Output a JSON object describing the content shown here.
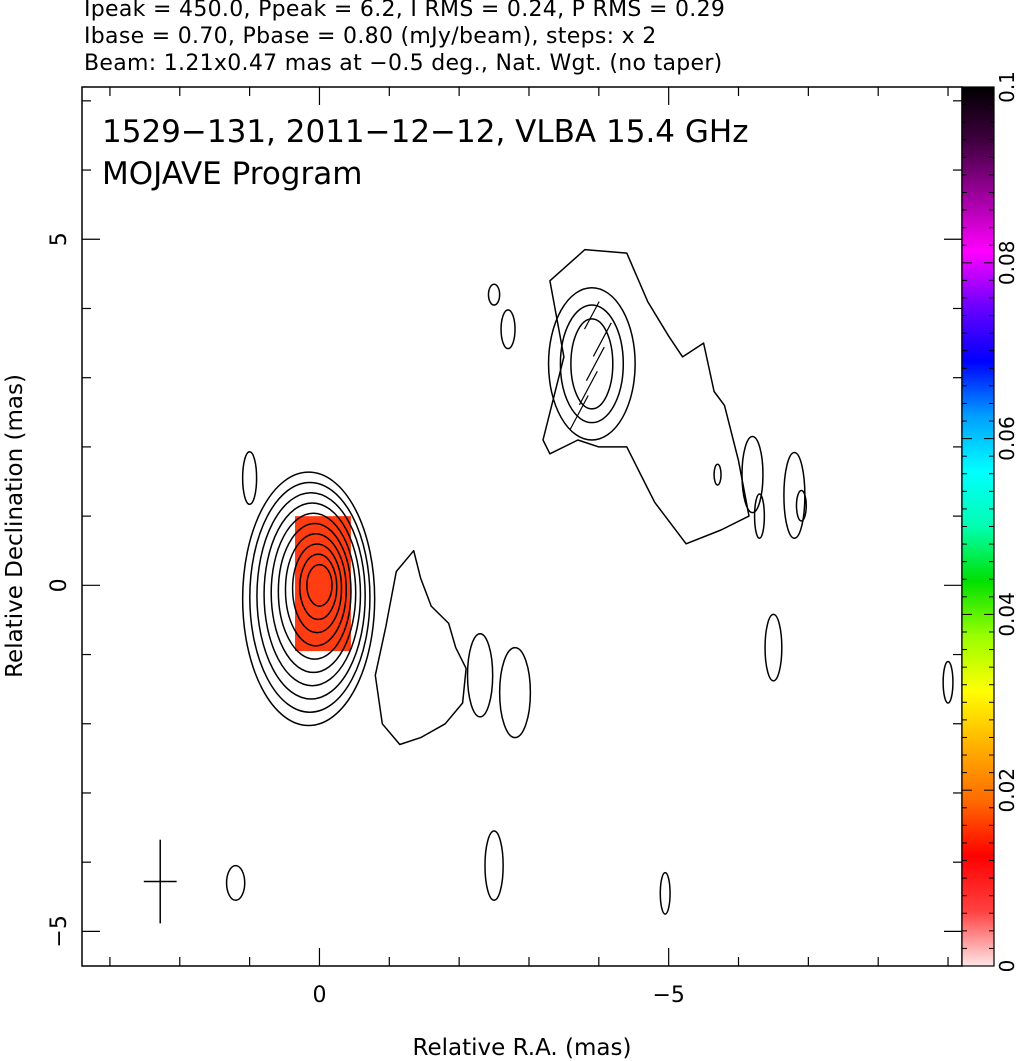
{
  "header": {
    "line1": "Ipeak = 450.0, Ppeak = 6.2, I RMS = 0.24, P RMS = 0.29",
    "line2": "Ibase = 0.70, Pbase = 0.80 (mJy/beam), steps: x 2",
    "line3": "Beam: 1.21x0.47 mas at −0.5 deg., Nat. Wgt. (no taper)"
  },
  "chart_data": {
    "type": "heatmap",
    "title_line1": "1529−131, 2011−12−12, VLBA 15.4 GHz",
    "title_line2": "MOJAVE Program",
    "xlabel": "Relative R.A. (mas)",
    "ylabel": "Relative Declination (mas)",
    "xlim": [
      3.4,
      -9.2
    ],
    "ylim": [
      -5.5,
      7.2
    ],
    "x_ticks": [
      0,
      -5
    ],
    "x_tick_labels": [
      "0",
      "−5"
    ],
    "y_ticks": [
      5,
      0,
      -5
    ],
    "y_tick_labels": [
      "5",
      "0",
      "−5"
    ],
    "colorbar": {
      "range": [
        0,
        0.1
      ],
      "ticks": [
        0,
        0.02,
        0.04,
        0.06,
        0.08,
        0.1
      ],
      "tick_labels": [
        "0",
        "0.02",
        "0.04",
        "0.06",
        "0.08",
        "0.1"
      ],
      "colors": [
        "#ffe6e6",
        "#ff4040",
        "#ff0000",
        "#ff6a00",
        "#ffb000",
        "#ffff00",
        "#9aff00",
        "#00e000",
        "#00ffb0",
        "#00ffff",
        "#00a0ff",
        "#0000ff",
        "#6a00ff",
        "#ff00ff",
        "#a000a0",
        "#400040",
        "#000000"
      ]
    },
    "core": {
      "x": 0,
      "y": 0,
      "contour_levels": 10,
      "rx0": 0.18,
      "ry0": 0.3,
      "rx_step": 0.085,
      "ry_step": 0.17
    },
    "polarization_patch": {
      "x_range": [
        0.35,
        -0.45
      ],
      "y_range": [
        -0.95,
        1.0
      ],
      "color": "#ff2a00"
    },
    "knot": {
      "x": -3.9,
      "y": 3.2,
      "contour_levels": 3,
      "rx": [
        0.3,
        0.45,
        0.62
      ],
      "ry": [
        0.65,
        0.85,
        1.1
      ]
    },
    "components": [
      {
        "x": 1.0,
        "y": 1.55,
        "rx": 0.1,
        "ry": 0.38
      },
      {
        "x": -2.5,
        "y": 4.2,
        "rx": 0.08,
        "ry": 0.15
      },
      {
        "x": -2.7,
        "y": 3.7,
        "rx": 0.1,
        "ry": 0.28
      },
      {
        "x": -5.7,
        "y": 1.6,
        "rx": 0.05,
        "ry": 0.15
      },
      {
        "x": -6.2,
        "y": 1.6,
        "rx": 0.15,
        "ry": 0.55
      },
      {
        "x": -6.8,
        "y": 1.3,
        "rx": 0.15,
        "ry": 0.62
      },
      {
        "x": -6.3,
        "y": 1.0,
        "rx": 0.07,
        "ry": 0.32
      },
      {
        "x": -6.5,
        "y": -0.9,
        "rx": 0.12,
        "ry": 0.48
      },
      {
        "x": -9.0,
        "y": -1.4,
        "rx": 0.07,
        "ry": 0.3
      },
      {
        "x": -2.3,
        "y": -1.3,
        "rx": 0.18,
        "ry": 0.6
      },
      {
        "x": -2.8,
        "y": -1.55,
        "rx": 0.22,
        "ry": 0.65
      },
      {
        "x": -2.5,
        "y": -4.05,
        "rx": 0.13,
        "ry": 0.5
      },
      {
        "x": -4.95,
        "y": -4.45,
        "rx": 0.07,
        "ry": 0.3
      },
      {
        "x": 1.2,
        "y": -4.3,
        "rx": 0.13,
        "ry": 0.25
      },
      {
        "x": -6.9,
        "y": 1.15,
        "rx": 0.07,
        "ry": 0.22
      }
    ],
    "jet_contour": [
      [
        -0.95,
        -0.6
      ],
      [
        -1.1,
        0.2
      ],
      [
        -1.35,
        0.5
      ],
      [
        -1.45,
        0.1
      ],
      [
        -1.6,
        -0.3
      ],
      [
        -1.85,
        -0.55
      ],
      [
        -1.95,
        -0.9
      ],
      [
        -2.1,
        -1.2
      ],
      [
        -2.05,
        -1.7
      ],
      [
        -1.8,
        -2.0
      ],
      [
        -1.45,
        -2.2
      ],
      [
        -1.15,
        -2.3
      ],
      [
        -0.9,
        -2.0
      ],
      [
        -0.8,
        -1.3
      ]
    ],
    "extended_contour": [
      [
        -3.2,
        2.1
      ],
      [
        -3.5,
        3.3
      ],
      [
        -3.3,
        4.4
      ],
      [
        -3.8,
        4.85
      ],
      [
        -4.4,
        4.8
      ],
      [
        -4.7,
        4.1
      ],
      [
        -5.0,
        3.6
      ],
      [
        -5.2,
        3.3
      ],
      [
        -5.5,
        3.5
      ],
      [
        -5.65,
        2.8
      ],
      [
        -5.8,
        2.6
      ],
      [
        -6.0,
        1.8
      ],
      [
        -6.15,
        1.0
      ],
      [
        -5.75,
        0.8
      ],
      [
        -5.25,
        0.6
      ],
      [
        -4.8,
        1.2
      ],
      [
        -4.6,
        1.6
      ],
      [
        -4.4,
        2.0
      ],
      [
        -4.0,
        2.0
      ],
      [
        -3.7,
        2.1
      ],
      [
        -3.3,
        1.9
      ]
    ],
    "beam": {
      "x": 2.28,
      "y": -4.28,
      "major": 1.21,
      "minor": 0.47,
      "pa_deg": -0.5
    },
    "polarization_ticks": [
      {
        "x": -3.72,
        "y": 2.5,
        "len": 0.55,
        "angle_deg": 62
      },
      {
        "x": -3.85,
        "y": 2.85,
        "len": 0.55,
        "angle_deg": 62
      },
      {
        "x": -3.95,
        "y": 3.2,
        "len": 0.55,
        "angle_deg": 62
      },
      {
        "x": -4.05,
        "y": 3.55,
        "len": 0.55,
        "angle_deg": 62
      },
      {
        "x": -3.9,
        "y": 3.9,
        "len": 0.45,
        "angle_deg": 62
      }
    ]
  }
}
